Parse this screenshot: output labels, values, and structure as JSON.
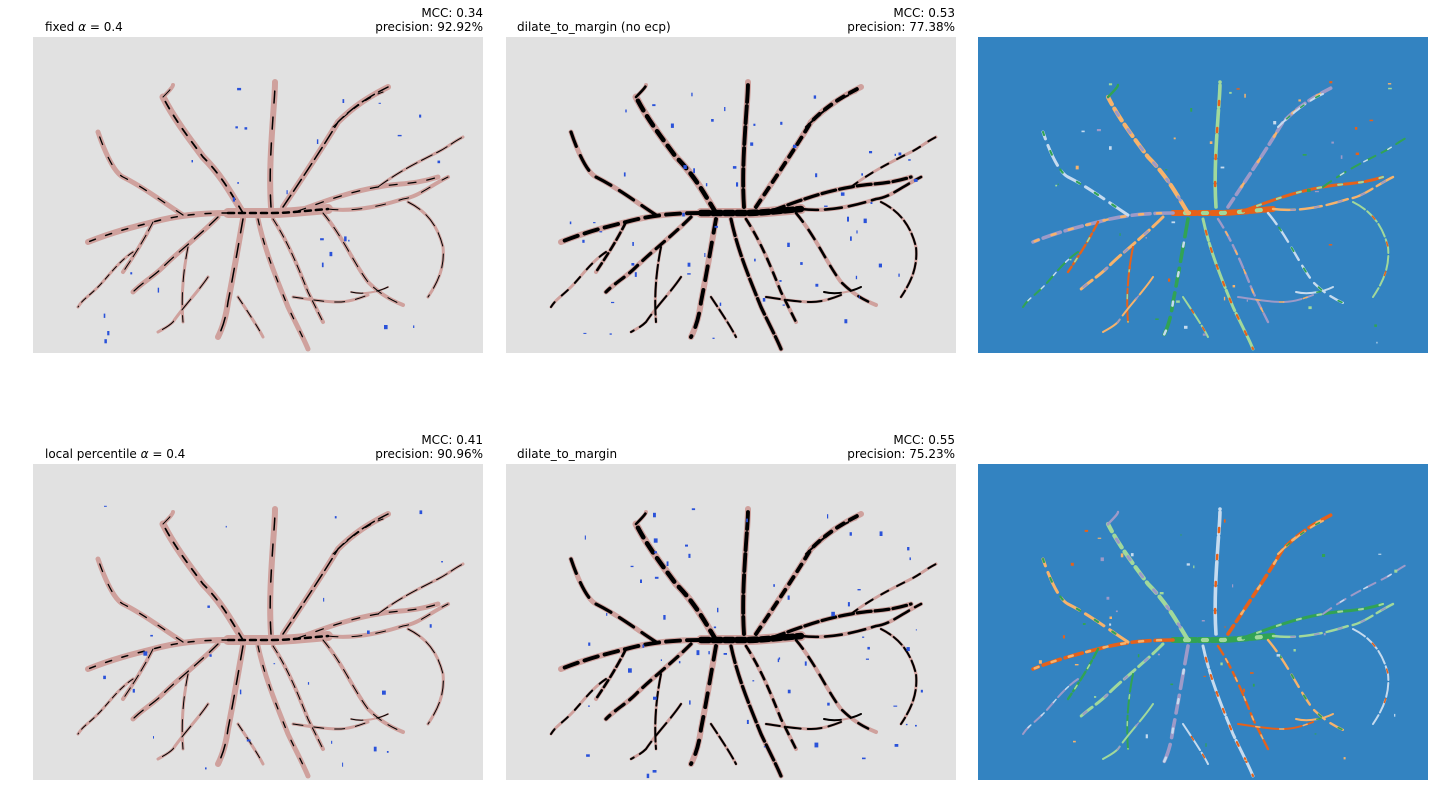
{
  "panels": [
    {
      "id": "fixed",
      "title_prefix": "fixed ",
      "alpha_symbol": "α",
      "title_suffix": " = 0.4",
      "mcc": "MCC: 0.34",
      "precision": "precision: 92.92%"
    },
    {
      "id": "dilate_no_ecp",
      "title": "dilate_to_margin (no ecp)",
      "mcc": "MCC: 0.53",
      "precision": "precision: 77.38%"
    },
    {
      "id": "local_percentile",
      "title_prefix": "local percentile ",
      "alpha_symbol": "α",
      "title_suffix": " = 0.4",
      "mcc": "MCC: 0.41",
      "precision": "precision: 90.96%"
    },
    {
      "id": "dilate",
      "title": "dilate_to_margin",
      "mcc": "MCC: 0.55",
      "precision": "precision: 75.23%"
    }
  ],
  "colors": {
    "background_gray": "#e1e1e1",
    "vessel_pink": "#cfa19d",
    "segment_black": "#000000",
    "false_positive_blue": "#2a52d9",
    "map_blue": "#3383c1",
    "label_orange": "#e6611a",
    "label_light_orange": "#f7b36b",
    "label_green": "#31a354",
    "label_light_green": "#a1d99b",
    "label_purple": "#9e9ac8",
    "label_light_blue": "#c6dbef"
  }
}
